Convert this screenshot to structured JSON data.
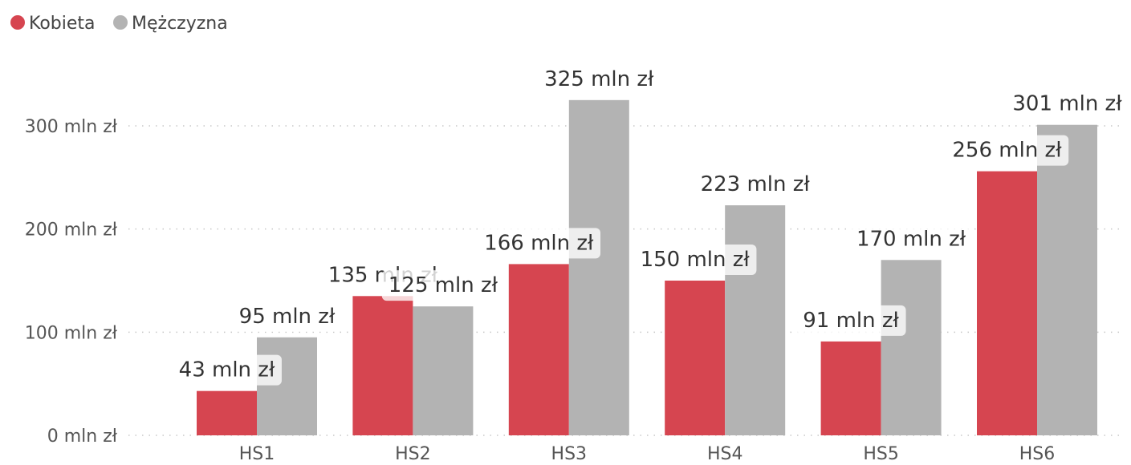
{
  "chart_data": {
    "type": "bar",
    "categories": [
      "HS1",
      "HS2",
      "HS3",
      "HS4",
      "HS5",
      "HS6"
    ],
    "series": [
      {
        "name": "Kobieta",
        "color": "#d64550",
        "values": [
          43,
          135,
          166,
          150,
          91,
          256
        ]
      },
      {
        "name": "Mężczyzna",
        "color": "#b3b3b3",
        "values": [
          95,
          125,
          325,
          223,
          170,
          301
        ]
      }
    ],
    "data_labels": [
      [
        "43 mln zł",
        "135 mln zł",
        "166 mln zł",
        "150 mln zł",
        "91 mln zł",
        "256 mln zł"
      ],
      [
        "95 mln zł",
        "125 mln zł",
        "325 mln zł",
        "223 mln zł",
        "170 mln zł",
        "301 mln zł"
      ]
    ],
    "y_ticks": [
      0,
      100,
      200,
      300
    ],
    "y_tick_labels": [
      "0 mln zł",
      "100 mln zł",
      "200 mln zł",
      "300 mln zł"
    ],
    "ylim": [
      0,
      325
    ],
    "grid": true,
    "legend_position": "top-left",
    "unit": "mln zł"
  }
}
